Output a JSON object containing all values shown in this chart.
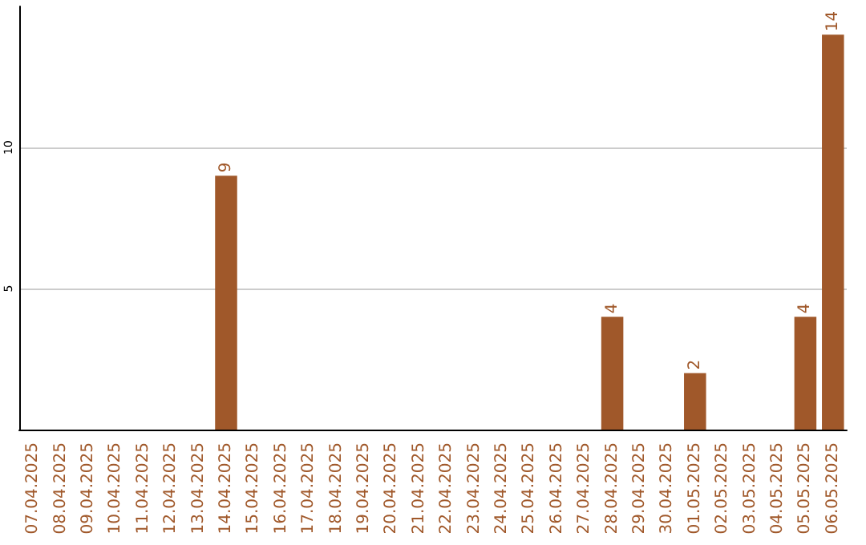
{
  "chart_data": {
    "type": "bar",
    "categories": [
      "07.04.2025",
      "08.04.2025",
      "09.04.2025",
      "10.04.2025",
      "11.04.2025",
      "12.04.2025",
      "13.04.2025",
      "14.04.2025",
      "15.04.2025",
      "16.04.2025",
      "17.04.2025",
      "18.04.2025",
      "19.04.2025",
      "20.04.2025",
      "21.04.2025",
      "22.04.2025",
      "23.04.2025",
      "24.04.2025",
      "25.04.2025",
      "26.04.2025",
      "27.04.2025",
      "28.04.2025",
      "29.04.2025",
      "30.04.2025",
      "01.05.2025",
      "02.05.2025",
      "03.05.2025",
      "04.05.2025",
      "05.05.2025",
      "06.05.2025"
    ],
    "values": [
      null,
      null,
      null,
      null,
      null,
      null,
      null,
      9,
      null,
      null,
      null,
      null,
      null,
      null,
      null,
      null,
      null,
      null,
      null,
      null,
      null,
      4,
      null,
      null,
      2,
      null,
      null,
      null,
      4,
      14
    ],
    "color": "#a0582a",
    "ylim": [
      0,
      15
    ],
    "yticks": [
      5,
      10
    ],
    "grid": "y",
    "data_labels": true
  }
}
